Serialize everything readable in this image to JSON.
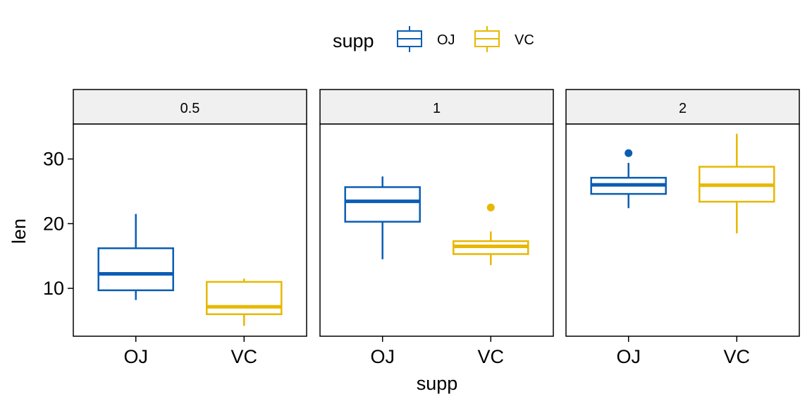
{
  "chart_data": {
    "type": "boxplot",
    "layout": "facet_wrap",
    "facet_var": "dose",
    "xlabel": "supp",
    "ylabel": "len",
    "ylim": [
      2.6,
      35.4
    ],
    "yticks": [
      10,
      20,
      30
    ],
    "legend": {
      "title": "supp",
      "position": "top",
      "entries": [
        {
          "name": "OJ",
          "color": "#0B5DB4"
        },
        {
          "name": "VC",
          "color": "#E7B800"
        }
      ]
    },
    "categories": [
      "OJ",
      "VC"
    ],
    "grid": false,
    "panels": [
      {
        "facet": "0.5",
        "boxes": [
          {
            "category": "OJ",
            "series": "OJ",
            "lower_whisker": 8.2,
            "q1": 9.7,
            "median": 12.25,
            "q3": 16.2,
            "upper_whisker": 21.5,
            "outliers": []
          },
          {
            "category": "VC",
            "series": "VC",
            "lower_whisker": 4.2,
            "q1": 6.0,
            "median": 7.15,
            "q3": 11.0,
            "upper_whisker": 11.5,
            "outliers": []
          }
        ]
      },
      {
        "facet": "1",
        "boxes": [
          {
            "category": "OJ",
            "series": "OJ",
            "lower_whisker": 14.5,
            "q1": 20.3,
            "median": 23.45,
            "q3": 25.65,
            "upper_whisker": 27.3,
            "outliers": []
          },
          {
            "category": "VC",
            "series": "VC",
            "lower_whisker": 13.6,
            "q1": 15.3,
            "median": 16.5,
            "q3": 17.3,
            "upper_whisker": 18.8,
            "outliers": [
              22.5
            ]
          }
        ]
      },
      {
        "facet": "2",
        "boxes": [
          {
            "category": "OJ",
            "series": "OJ",
            "lower_whisker": 22.4,
            "q1": 24.6,
            "median": 26.0,
            "q3": 27.1,
            "upper_whisker": 29.4,
            "outliers": [
              30.9
            ]
          },
          {
            "category": "VC",
            "series": "VC",
            "lower_whisker": 18.5,
            "q1": 23.4,
            "median": 25.95,
            "q3": 28.8,
            "upper_whisker": 33.9,
            "outliers": []
          }
        ]
      }
    ]
  }
}
